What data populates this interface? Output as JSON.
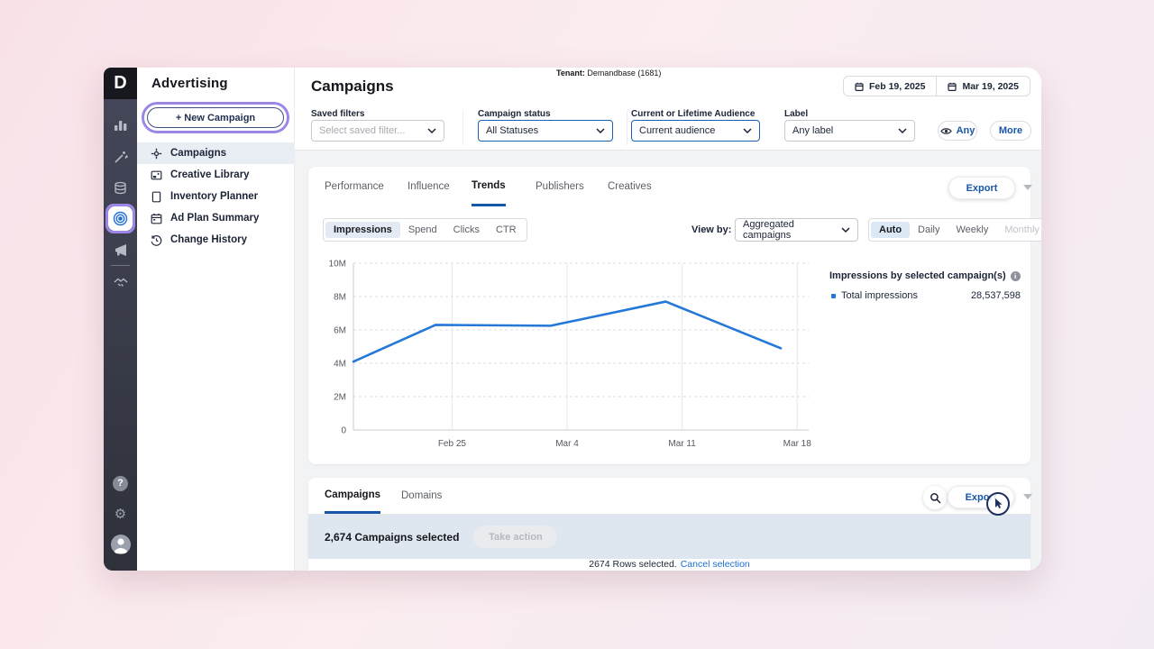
{
  "window": {
    "logo_letter": "D"
  },
  "tenant": {
    "label": "Tenant:",
    "value": "Demandbase (1681)"
  },
  "nav_panel": {
    "title": "Advertising",
    "new_campaign_label": "+ New Campaign",
    "items": [
      {
        "label": "Campaigns",
        "active": true
      },
      {
        "label": "Creative Library",
        "active": false
      },
      {
        "label": "Inventory Planner",
        "active": false
      },
      {
        "label": "Ad Plan Summary",
        "active": false
      },
      {
        "label": "Change History",
        "active": false
      }
    ]
  },
  "header": {
    "title": "Campaigns",
    "date_start": "Feb 19, 2025",
    "date_end": "Mar 19, 2025"
  },
  "filters": {
    "saved": {
      "label": "Saved filters",
      "placeholder": "Select saved filter..."
    },
    "status": {
      "label": "Campaign status",
      "value": "All Statuses"
    },
    "audience": {
      "label": "Current or Lifetime Audience",
      "value": "Current audience"
    },
    "label": {
      "label": "Label",
      "value": "Any label"
    },
    "any_label": "Any",
    "more_label": "More"
  },
  "trends": {
    "tabs": [
      "Performance",
      "Influence",
      "Trends",
      "Publishers",
      "Creatives"
    ],
    "active_tab": "Trends",
    "export_label": "Export",
    "metrics": [
      "Impressions",
      "Spend",
      "Clicks",
      "CTR"
    ],
    "active_metric": "Impressions",
    "view_by_label": "View by:",
    "view_by_value": "Aggregated campaigns",
    "granularity": [
      "Auto",
      "Daily",
      "Weekly",
      "Monthly"
    ],
    "active_granularity": "Auto",
    "disabled_granularity": "Monthly",
    "legend_title": "Impressions by selected campaign(s)",
    "legend_series": "Total impressions",
    "legend_value": "28,537,598"
  },
  "chart_data": {
    "type": "line",
    "title": "Impressions by selected campaign(s)",
    "series_name": "Total impressions",
    "series_total": "28,537,598",
    "points": [
      {
        "x": "Feb 19",
        "day": 0,
        "value_millions": 4.1
      },
      {
        "x": "Feb 24",
        "day": 5,
        "value_millions": 6.3
      },
      {
        "x": "Mar 3",
        "day": 12,
        "value_millions": 6.25
      },
      {
        "x": "Mar 10",
        "day": 19,
        "value_millions": 7.7
      },
      {
        "x": "Mar 17",
        "day": 26,
        "value_millions": 4.9
      }
    ],
    "x_ticks": [
      {
        "label": "Feb 25",
        "day": 6
      },
      {
        "label": "Mar 4",
        "day": 13
      },
      {
        "label": "Mar 11",
        "day": 20
      },
      {
        "label": "Mar 18",
        "day": 27
      }
    ],
    "x_domain_days": [
      0,
      27.7
    ],
    "y_ticks": [
      "0",
      "2M",
      "4M",
      "6M",
      "8M",
      "10M"
    ],
    "ylim_millions": [
      0,
      10
    ],
    "line_color": "#2478d8",
    "grid": "horizontal dashed, vertical solid at weekly ticks",
    "legend_position": "right"
  },
  "table": {
    "tabs": [
      "Campaigns",
      "Domains"
    ],
    "active_tab": "Campaigns",
    "export_label": "Export",
    "selected_text": "2,674 Campaigns selected",
    "take_action_label": "Take action",
    "rows_selected_text": "2674 Rows selected.",
    "cancel_link": "Cancel selection"
  },
  "colors": {
    "accent_blue": "#1956a8",
    "link_blue": "#1d6fd2",
    "line_blue": "#2478d8",
    "purple_highlight": "#9d87e6",
    "selected_bar_bg": "#dee6ef"
  }
}
